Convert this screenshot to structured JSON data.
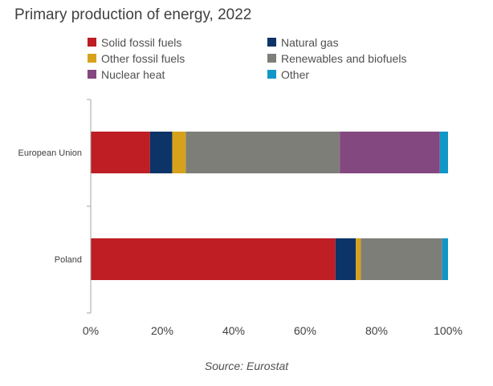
{
  "chart_data": {
    "type": "bar",
    "orientation": "horizontal",
    "stacked": true,
    "title": "Primary production of energy, 2022",
    "source": "Source: Eurostat",
    "xlabel": "",
    "ylabel": "",
    "xlim": [
      0,
      100
    ],
    "x_ticks": [
      "0%",
      "20%",
      "40%",
      "60%",
      "80%",
      "100%"
    ],
    "x_tick_values": [
      0,
      20,
      40,
      60,
      80,
      100
    ],
    "categories": [
      "European Union",
      "Poland"
    ],
    "legend_position": "top",
    "series": [
      {
        "name": "Solid fossil fuels",
        "color": "#be1e24",
        "values": [
          16.6,
          68.5
        ]
      },
      {
        "name": "Natural gas",
        "color": "#0c3468",
        "values": [
          6.2,
          5.7
        ]
      },
      {
        "name": "Other fossil fuels",
        "color": "#d6a21c",
        "values": [
          3.8,
          1.4
        ]
      },
      {
        "name": "Renewables and biofuels",
        "color": "#7e7e79",
        "values": [
          43.1,
          22.8
        ]
      },
      {
        "name": "Nuclear heat",
        "color": "#844880",
        "values": [
          28.0,
          0.0
        ]
      },
      {
        "name": "Other",
        "color": "#1097c8",
        "values": [
          2.3,
          1.6
        ]
      }
    ]
  }
}
